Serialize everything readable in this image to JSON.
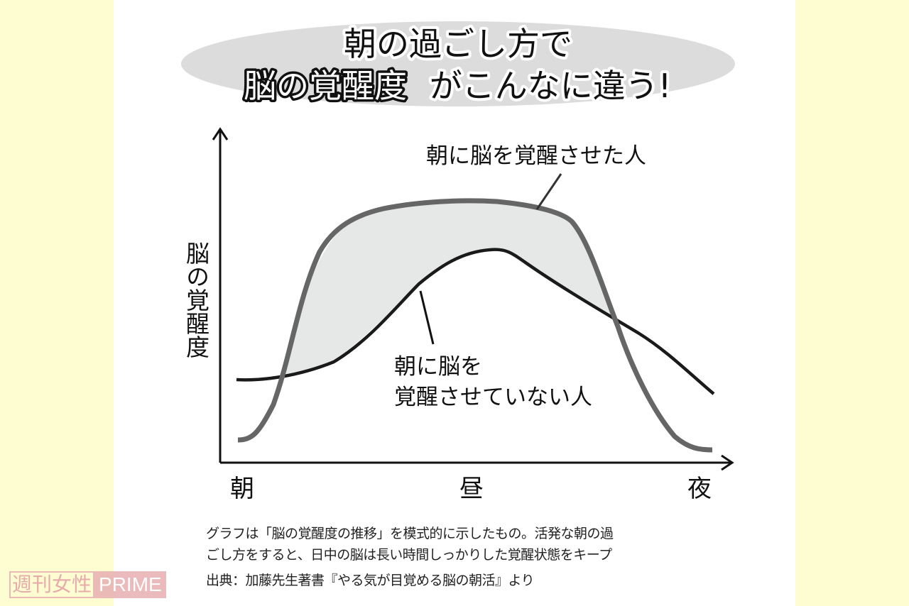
{
  "title": {
    "line1": "朝の過ごし方で",
    "line2_emphasis": "脳の覚醒度",
    "line2_rest": "がこんなに違う!"
  },
  "axes": {
    "ylabel": "脳の覚醒度",
    "xticks": [
      "朝",
      "昼",
      "夜"
    ]
  },
  "labels": {
    "awakened": "朝に脳を覚醒させた人",
    "not_awakened_line1": "朝に脳を",
    "not_awakened_line2": "覚醒させていない人"
  },
  "colors": {
    "awakened_curve": "#666666",
    "not_awakened_curve": "#1a1a1a",
    "fill_between": "#e6e7e7",
    "title_ellipse": "#dcdcdc",
    "background": "#fefdd2"
  },
  "caption": {
    "line1": "グラフは「脳の覚醒度の推移」を模式的に示したもの。活発な朝の過",
    "line2": "ごし方をすると、日中の脳は長い時間しっかりした覚醒状態をキープ",
    "source": "出典：加藤先生著書『やる気が目覚める脳の朝活』より"
  },
  "watermark": {
    "part1": "週刊女性",
    "part2": "PRIME"
  }
}
